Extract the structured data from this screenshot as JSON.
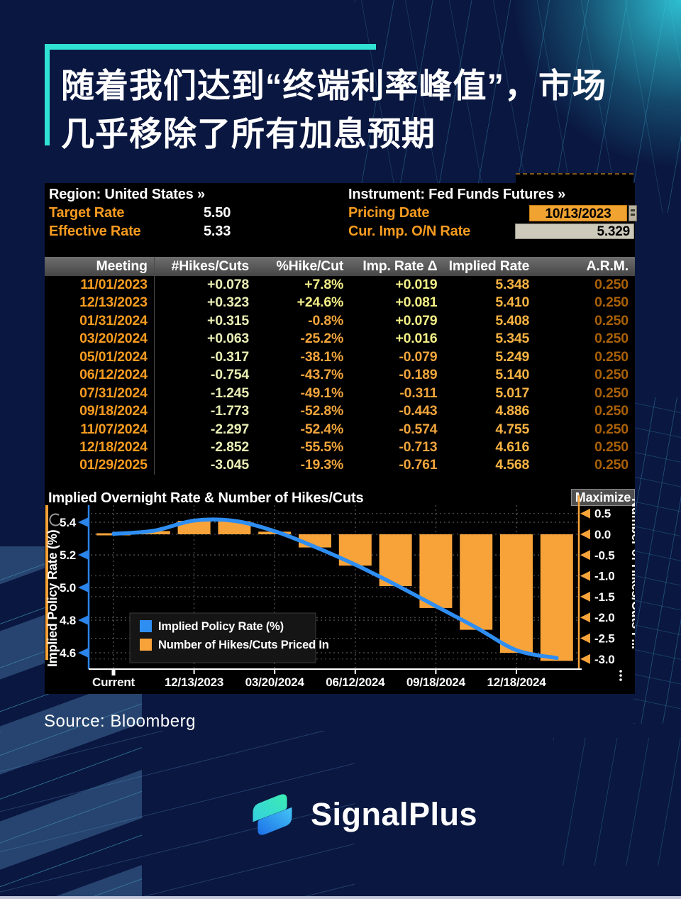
{
  "page": {
    "background": "#0a1740",
    "accent_teal": "#30e2d3"
  },
  "title": {
    "line1": "随着我们达到“终端利率峰值”，市场",
    "line2": "几乎移除了所有加息预期"
  },
  "terminal": {
    "header": {
      "region_label": "Region: United States »",
      "target_rate_label": "Target Rate",
      "target_rate_value": "5.50",
      "effective_rate_label": "Effective Rate",
      "effective_rate_value": "5.33",
      "instrument_label": "Instrument: Fed Funds Futures »",
      "pricing_date_label": "Pricing Date",
      "pricing_date_value": "10/13/2023",
      "cur_imp_label": "Cur. Imp. O/N Rate",
      "cur_imp_value": "5.329"
    },
    "table": {
      "columns": [
        "Meeting",
        "#Hikes/Cuts",
        "%Hike/Cut",
        "Imp. Rate Δ",
        "Implied Rate",
        "A.R.M."
      ],
      "rows": [
        [
          "11/01/2023",
          "+0.078",
          "+7.8%",
          "+0.019",
          "5.348",
          "0.250"
        ],
        [
          "12/13/2023",
          "+0.323",
          "+24.6%",
          "+0.081",
          "5.410",
          "0.250"
        ],
        [
          "01/31/2024",
          "+0.315",
          "-0.8%",
          "+0.079",
          "5.408",
          "0.250"
        ],
        [
          "03/20/2024",
          "+0.063",
          "-25.2%",
          "+0.016",
          "5.345",
          "0.250"
        ],
        [
          "05/01/2024",
          "-0.317",
          "-38.1%",
          "-0.079",
          "5.249",
          "0.250"
        ],
        [
          "06/12/2024",
          "-0.754",
          "-43.7%",
          "-0.189",
          "5.140",
          "0.250"
        ],
        [
          "07/31/2024",
          "-1.245",
          "-49.1%",
          "-0.311",
          "5.017",
          "0.250"
        ],
        [
          "09/18/2024",
          "-1.773",
          "-52.8%",
          "-0.443",
          "4.886",
          "0.250"
        ],
        [
          "11/07/2024",
          "-2.297",
          "-52.4%",
          "-0.574",
          "4.755",
          "0.250"
        ],
        [
          "12/18/2024",
          "-2.852",
          "-55.5%",
          "-0.713",
          "4.616",
          "0.250"
        ],
        [
          "01/29/2025",
          "-3.045",
          "-19.3%",
          "-0.761",
          "4.568",
          "0.250"
        ]
      ]
    },
    "chart_title": "Implied Overnight Rate & Number of Hikes/Cuts",
    "maximize_label": "Maximize"
  },
  "chart_data": {
    "type": "bar+line",
    "title": "Implied Overnight Rate & Number of Hikes/Cuts",
    "categories": [
      "Current",
      "11/01/2023",
      "12/13/2023",
      "01/31/2024",
      "03/20/2024",
      "05/01/2024",
      "06/12/2024",
      "07/31/2024",
      "09/18/2024",
      "11/07/2024",
      "12/18/2024",
      "01/29/2025"
    ],
    "x_tick_labels": [
      "Current",
      "12/13/2023",
      "03/20/2024",
      "06/12/2024",
      "09/18/2024",
      "12/18/2024"
    ],
    "series": [
      {
        "name": "Implied Policy Rate (%)",
        "type": "line",
        "axis": "left",
        "color": "#2f8ef2",
        "values": [
          5.329,
          5.348,
          5.41,
          5.408,
          5.345,
          5.249,
          5.14,
          5.017,
          4.886,
          4.755,
          4.616,
          4.568
        ]
      },
      {
        "name": "Number of Hikes/Cuts Priced In",
        "type": "bar",
        "axis": "right",
        "color": "#f8a33a",
        "values": [
          0,
          0.078,
          0.323,
          0.315,
          0.063,
          -0.317,
          -0.754,
          -1.245,
          -1.773,
          -2.297,
          -2.852,
          -3.045
        ]
      }
    ],
    "left_axis": {
      "label": "Implied Policy Rate (%)",
      "ticks": [
        5.4,
        5.2,
        5.0,
        4.8,
        4.6
      ],
      "color": "#2b84ea",
      "range": [
        4.46,
        5.5
      ]
    },
    "right_axis": {
      "label": "Number of Hikes/Cuts P...",
      "ticks": [
        0.5,
        0.0,
        -0.5,
        -1.0,
        -1.5,
        -2.0,
        -2.5,
        -3.0
      ],
      "color": "#f8a33a",
      "range": [
        -3.25,
        0.7
      ]
    },
    "grid": "dashed",
    "legend_position": "bottom-left"
  },
  "source": "Source: Bloomberg",
  "brand": {
    "name": "SignalPlus"
  }
}
